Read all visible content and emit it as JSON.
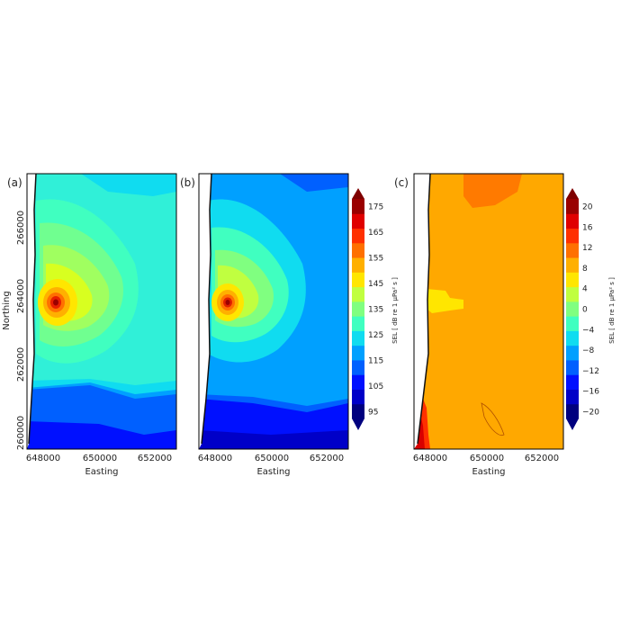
{
  "chart_data": [
    {
      "type": "contour",
      "panel_label": "(a)",
      "xlabel": "Easting",
      "ylabel": "Northing",
      "x_ticks": [
        "648000",
        "650000",
        "652000"
      ],
      "y_ticks": [
        "260000",
        "262000",
        "264000",
        "266000"
      ],
      "xlim": [
        647700,
        653600
      ],
      "ylim": [
        259300,
        267400
      ],
      "source": {
        "easting": 648500,
        "northing": 264050
      },
      "contour_levels_db": [
        95,
        100,
        105,
        110,
        115,
        120,
        125,
        130,
        135,
        140,
        145,
        150,
        155,
        160,
        165,
        170,
        175
      ],
      "colormap": "jet"
    },
    {
      "type": "contour",
      "panel_label": "(b)",
      "xlabel": "Easting",
      "ylabel": "",
      "x_ticks": [
        "648000",
        "650000",
        "652000"
      ],
      "xlim": [
        647700,
        653600
      ],
      "ylim": [
        259300,
        267400
      ],
      "source": {
        "easting": 648500,
        "northing": 264050
      },
      "contour_levels_db": [
        95,
        100,
        105,
        110,
        115,
        120,
        125,
        130,
        135,
        140,
        145,
        150,
        155,
        160,
        165,
        170,
        175
      ],
      "colormap": "jet",
      "colorbar": {
        "label": "SEL [ dB re 1 µPa² s ]",
        "ticks": [
          "175",
          "165",
          "155",
          "145",
          "135",
          "125",
          "115",
          "105",
          "95"
        ],
        "range": [
          95,
          180
        ]
      }
    },
    {
      "type": "contour",
      "panel_label": "(c)",
      "xlabel": "Easting",
      "ylabel": "",
      "x_ticks": [
        "648000",
        "650000",
        "652000"
      ],
      "xlim": [
        647700,
        653600
      ],
      "ylim": [
        259300,
        267400
      ],
      "contour_levels_db": [
        -20,
        -16,
        -12,
        -8,
        -4,
        0,
        4,
        8,
        12,
        16,
        20
      ],
      "colormap": "jet",
      "colorbar": {
        "label": "SEL [ dB re 1 µPa² s ]",
        "ticks": [
          "20",
          "16",
          "12",
          "8",
          "4",
          "0",
          "−4",
          "−8",
          "−12",
          "−16",
          "−20"
        ],
        "range": [
          -20,
          20
        ]
      }
    }
  ],
  "colors": {
    "c95": "#00007f",
    "c100": "#0000c8",
    "c105": "#0010ff",
    "c110": "#0060ff",
    "c115": "#00a0ff",
    "c120": "#10dcf0",
    "c125": "#40ffc0",
    "c130": "#80ff80",
    "c135": "#c0ff40",
    "c140": "#ffe600",
    "c145": "#ffb000",
    "c150": "#ff7000",
    "c155": "#ff3000",
    "c160": "#e00000",
    "c165": "#9a0000"
  }
}
